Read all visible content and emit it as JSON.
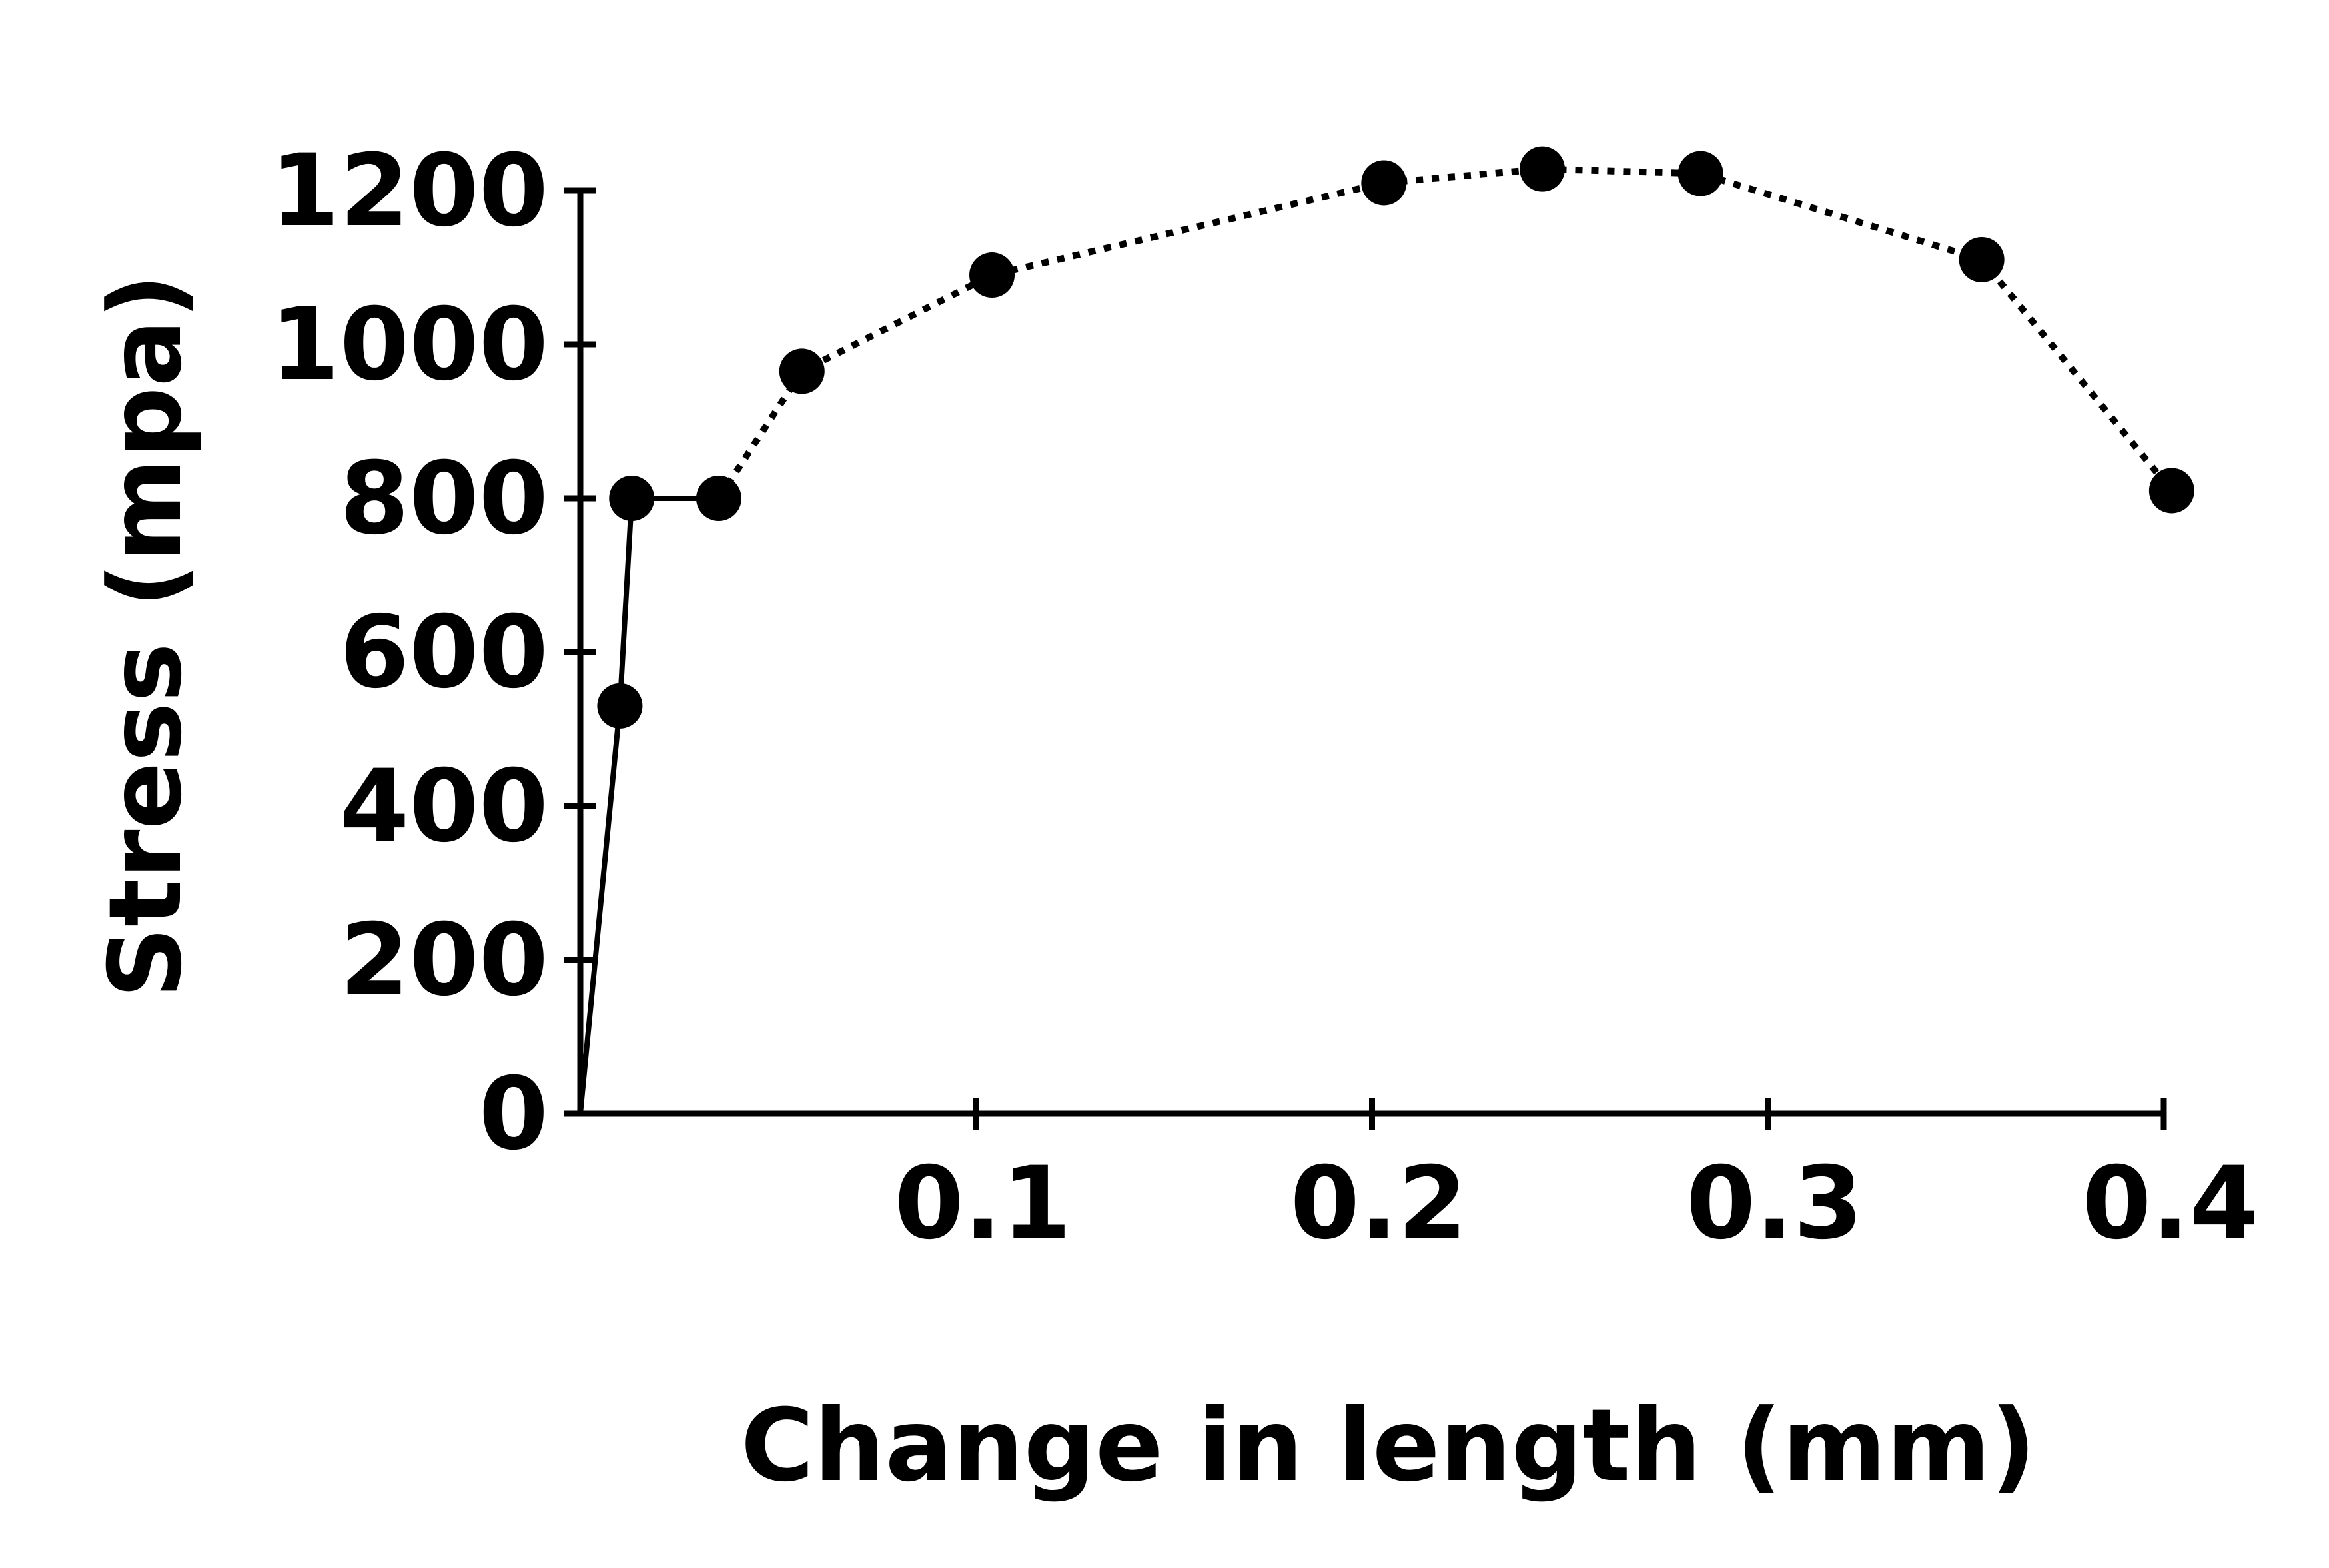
{
  "chart_data": {
    "type": "line",
    "title": "",
    "xlabel": "Change in length (mm)",
    "ylabel": "Stress (mpa)",
    "xlim": [
      0,
      0.4
    ],
    "ylim": [
      0,
      1200
    ],
    "x_ticks": [
      0.1,
      0.2,
      0.3,
      0.4
    ],
    "x_tick_labels": [
      "0.1",
      "0.2",
      "0.3",
      "0.4"
    ],
    "y_ticks": [
      0,
      200,
      400,
      600,
      800,
      1000,
      1200
    ],
    "y_tick_labels": [
      "0",
      "200",
      "400",
      "600",
      "800",
      "1000",
      "1200"
    ],
    "grid": false,
    "legend": "none",
    "colors": {
      "line": "#000000",
      "marker": "#000000",
      "axis": "#000000"
    },
    "x": [
      0.0,
      0.01,
      0.013,
      0.035,
      0.056,
      0.104,
      0.203,
      0.243,
      0.283,
      0.354,
      0.402
    ],
    "values": [
      0,
      530,
      800,
      800,
      965,
      1090,
      1210,
      1228,
      1222,
      1110,
      810
    ],
    "markers": [
      false,
      true,
      true,
      true,
      true,
      true,
      true,
      true,
      true,
      true,
      true
    ],
    "solid_segment_end_index": 3,
    "line_styles": [
      "solid",
      "dotted"
    ]
  }
}
